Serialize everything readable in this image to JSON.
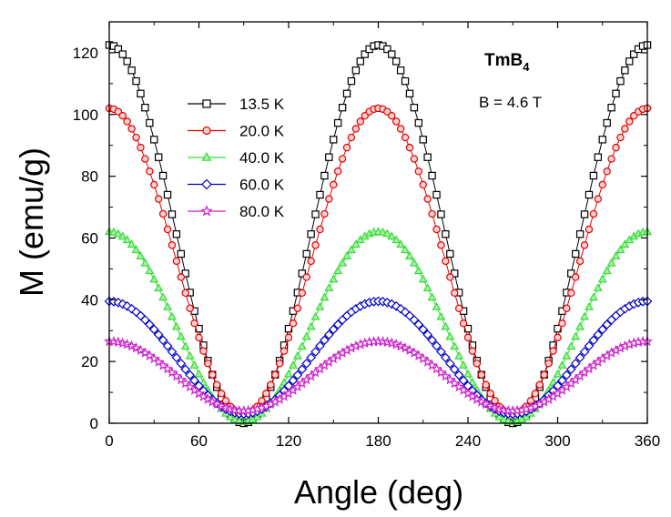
{
  "chart_data": {
    "type": "scatter",
    "xlabel": "Angle (deg)",
    "ylabel": "M (emu/g)",
    "xlim": [
      0,
      360
    ],
    "ylim": [
      0,
      130
    ],
    "x_ticks": [
      0,
      60,
      120,
      180,
      240,
      300,
      360
    ],
    "y_ticks": [
      0,
      20,
      40,
      60,
      80,
      100,
      120
    ],
    "x_tick_labels": [
      "0",
      "60",
      "120",
      "180",
      "240",
      "300",
      "360"
    ],
    "y_tick_labels": [
      "0",
      "20",
      "40",
      "60",
      "80",
      "100",
      "120"
    ],
    "grid": false,
    "legend_position": "upper-left",
    "annotation": {
      "compound_main": "TmB",
      "compound_sub": "4",
      "field": "B = 4.6 T"
    },
    "x": {
      "start": 0,
      "stop": 360,
      "step": 3
    },
    "series": [
      {
        "name": "13.5 K",
        "model": "M = 122.5·cos²θ",
        "amplitude": 122.5,
        "offset": 0,
        "marker": "square",
        "color": "#000000",
        "fill": "#ffffff"
      },
      {
        "name": "20.0 K",
        "model": "M = 99·cos²θ + 3",
        "amplitude": 99,
        "offset": 3,
        "marker": "circle",
        "color": "#e00000",
        "fill": "#ffd0d0"
      },
      {
        "name": "40.0 K",
        "model": "M = 61.5·cos²θ + 0.5",
        "amplitude": 61.5,
        "offset": 0.5,
        "marker": "triangle",
        "color": "#33dd33",
        "fill": "#aaf0aa"
      },
      {
        "name": "60.0 K",
        "model": "M = 36.5·cos²θ + 3",
        "amplitude": 36.5,
        "offset": 3,
        "marker": "diamond",
        "color": "#0000cc",
        "fill": "#ffffff"
      },
      {
        "name": "80.0 K",
        "model": "M = 22.5·cos²θ + 4",
        "amplitude": 22.5,
        "offset": 4,
        "marker": "star",
        "color": "#cc22cc",
        "fill": "#ffffff"
      }
    ]
  }
}
